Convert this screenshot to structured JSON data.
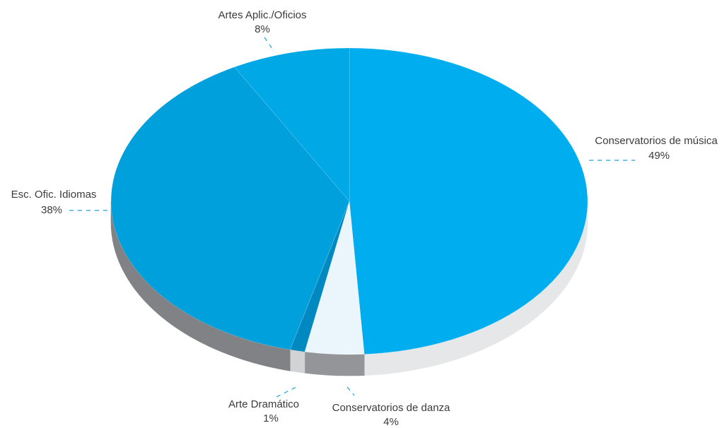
{
  "chart_data": {
    "type": "pie",
    "style": "3d",
    "title": "",
    "slices": [
      {
        "label": "Conservatorios de música",
        "value": 49,
        "value_label": "49%",
        "color": "#00AEEF",
        "side_color": "#E6E7E8"
      },
      {
        "label": "Conservatorios de danza",
        "value": 4,
        "value_label": "4%",
        "color": "#EAF6FB",
        "side_color": "#939598"
      },
      {
        "label": "Arte Dramático",
        "value": 1,
        "value_label": "1%",
        "color": "#0089C0",
        "side_color": "#D1D3D4"
      },
      {
        "label": "Esc. Ofic. Idiomas",
        "value": 38,
        "value_label": "38%",
        "color": "#00A0DC",
        "side_color": "#808285"
      },
      {
        "label": "Artes Aplic./Oficios",
        "value": 8,
        "value_label": "8%",
        "color": "#00A9E6",
        "side_color": "#808285"
      }
    ]
  }
}
